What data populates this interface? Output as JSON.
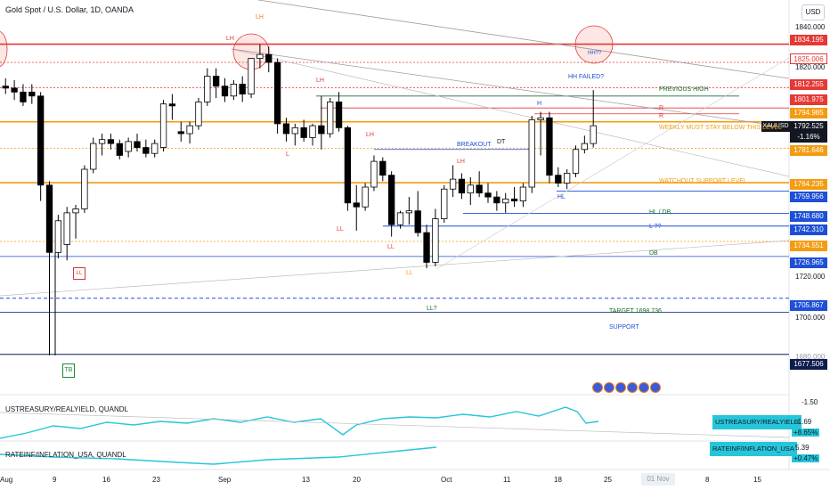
{
  "header": {
    "title": "Gold Spot / U.S. Dollar, 1D, OANDA",
    "currency_button": "USD"
  },
  "price_axis": {
    "ticks": [
      "1840.000",
      "1820.000",
      "1720.000",
      "1700.000",
      "1680.000",
      "-1.50"
    ],
    "badges": [
      {
        "id": "b1834",
        "text": "1834.195",
        "color": "#e53935"
      },
      {
        "id": "b1825",
        "text": "1825.006",
        "color": "#e53935"
      },
      {
        "id": "b1812",
        "text": "1812.255",
        "color": "#e53935"
      },
      {
        "id": "b1801",
        "text": "1801.975",
        "color": "#e53935"
      },
      {
        "id": "b1794",
        "text": "1794.985",
        "color": "#f39c12"
      },
      {
        "id": "b1781",
        "text": "1781.646",
        "color": "#f39c12"
      },
      {
        "id": "b1764",
        "text": "1764.235",
        "color": "#f39c12"
      },
      {
        "id": "b1759",
        "text": "1759.956",
        "color": "#1e4fd6"
      },
      {
        "id": "b1748",
        "text": "1748.680",
        "color": "#1e4fd6"
      },
      {
        "id": "b1742",
        "text": "1742.310",
        "color": "#1e4fd6"
      },
      {
        "id": "b1734",
        "text": "1734.551",
        "color": "#f39c12"
      },
      {
        "id": "b1726",
        "text": "1726.965",
        "color": "#1e4fd6"
      },
      {
        "id": "b1705",
        "text": "1705.867",
        "color": "#1e4fd6"
      },
      {
        "id": "b1677",
        "text": "1677.506",
        "color": "#0d1b4d"
      }
    ],
    "symbol_tag": "XAUUSD",
    "last_price": "1792.525",
    "last_change": "-1.16%"
  },
  "annotations": {
    "lh_top": "LH",
    "lh_mid": "LH",
    "lh_sep": "LH",
    "lh_oct": "LH",
    "lh_circle": "LH",
    "hh_circle": "HH??",
    "hh_failed": "HH FAILED?",
    "previous_high": "PREVIOUS HIGH",
    "weekly_close": "WEEKLY MUST STAY BELOW THIS LEVEL",
    "watchout": "WATCHOUT SUPPORT LEVEL",
    "breakout": "BREAKOUT",
    "dt": "DT",
    "h": "H",
    "hl": "HL",
    "hl_db": "HL / DB",
    "l_q": "L ??",
    "db": "DB",
    "ll_q": "LL?",
    "target": "TARGET 1698.736",
    "support": "SUPPORT",
    "l_label": "L",
    "ll1": "LL",
    "ll2": "LL",
    "ll3": "LL",
    "ll_box": "LL",
    "tb": "TB",
    "r1": "R",
    "r2": "R"
  },
  "indicators": {
    "treasury": {
      "title": "USTREASURY/REALYIELD, QUANDL",
      "name": "USTREASURY/REALYIELD",
      "value": "-1.69",
      "change": "+8.65%"
    },
    "inflation": {
      "title": "RATEINF/INFLATION_USA, QUANDL",
      "name": "RATEINF/INFLATION_USA",
      "value": "5.39",
      "change": "+0.47%"
    }
  },
  "time_axis": {
    "labels": [
      "Aug",
      "9",
      "16",
      "23",
      "Sep",
      "13",
      "20",
      "Oct",
      "11",
      "18",
      "25",
      "8",
      "15"
    ],
    "now_label": "01 Nov"
  },
  "colors": {
    "bull": "#ffffff",
    "bear": "#000000",
    "resistance": "#e53935",
    "orange": "#f39c12",
    "blue": "#1e4fd6",
    "green": "#1a6b2e",
    "teal": "#26c6da"
  },
  "chart_data": {
    "type": "candlestick",
    "candles": [
      {
        "o": 1813,
        "h": 1817,
        "l": 1809,
        "c": 1812
      },
      {
        "o": 1812,
        "h": 1816,
        "l": 1806,
        "c": 1810
      },
      {
        "o": 1810,
        "h": 1814,
        "l": 1803,
        "c": 1805
      },
      {
        "o": 1810,
        "h": 1814,
        "l": 1804,
        "c": 1808
      },
      {
        "o": 1808,
        "h": 1810,
        "l": 1755,
        "c": 1763
      },
      {
        "o": 1763,
        "h": 1765,
        "l": 1677,
        "c": 1729
      },
      {
        "o": 1729,
        "h": 1748,
        "l": 1726,
        "c": 1745
      },
      {
        "o": 1733,
        "h": 1752,
        "l": 1725,
        "c": 1749
      },
      {
        "o": 1749,
        "h": 1753,
        "l": 1736,
        "c": 1751
      },
      {
        "o": 1751,
        "h": 1773,
        "l": 1749,
        "c": 1771
      },
      {
        "o": 1771,
        "h": 1787,
        "l": 1769,
        "c": 1784
      },
      {
        "o": 1784,
        "h": 1789,
        "l": 1778,
        "c": 1786
      },
      {
        "o": 1786,
        "h": 1789,
        "l": 1781,
        "c": 1784
      },
      {
        "o": 1784,
        "h": 1786,
        "l": 1776,
        "c": 1778
      },
      {
        "o": 1780,
        "h": 1787,
        "l": 1777,
        "c": 1785
      },
      {
        "o": 1785,
        "h": 1789,
        "l": 1780,
        "c": 1782
      },
      {
        "o": 1782,
        "h": 1786,
        "l": 1777,
        "c": 1779
      },
      {
        "o": 1779,
        "h": 1786,
        "l": 1777,
        "c": 1784
      },
      {
        "o": 1782,
        "h": 1806,
        "l": 1780,
        "c": 1804
      },
      {
        "o": 1804,
        "h": 1809,
        "l": 1796,
        "c": 1803
      },
      {
        "o": 1790,
        "h": 1795,
        "l": 1785,
        "c": 1789
      },
      {
        "o": 1789,
        "h": 1795,
        "l": 1784,
        "c": 1793
      },
      {
        "o": 1793,
        "h": 1807,
        "l": 1791,
        "c": 1805
      },
      {
        "o": 1805,
        "h": 1822,
        "l": 1803,
        "c": 1818
      },
      {
        "o": 1818,
        "h": 1822,
        "l": 1807,
        "c": 1813
      },
      {
        "o": 1813,
        "h": 1817,
        "l": 1805,
        "c": 1808
      },
      {
        "o": 1808,
        "h": 1816,
        "l": 1806,
        "c": 1814
      },
      {
        "o": 1814,
        "h": 1818,
        "l": 1805,
        "c": 1809
      },
      {
        "o": 1809,
        "h": 1827,
        "l": 1807,
        "c": 1827
      },
      {
        "o": 1827,
        "h": 1834,
        "l": 1822,
        "c": 1829
      },
      {
        "o": 1829,
        "h": 1833,
        "l": 1820,
        "c": 1825
      },
      {
        "o": 1825,
        "h": 1827,
        "l": 1789,
        "c": 1794
      },
      {
        "o": 1794,
        "h": 1797,
        "l": 1785,
        "c": 1789
      },
      {
        "o": 1789,
        "h": 1794,
        "l": 1783,
        "c": 1792
      },
      {
        "o": 1792,
        "h": 1796,
        "l": 1785,
        "c": 1787
      },
      {
        "o": 1787,
        "h": 1794,
        "l": 1783,
        "c": 1793
      },
      {
        "o": 1793,
        "h": 1808,
        "l": 1781,
        "c": 1789
      },
      {
        "o": 1789,
        "h": 1807,
        "l": 1787,
        "c": 1805
      },
      {
        "o": 1805,
        "h": 1810,
        "l": 1790,
        "c": 1792
      },
      {
        "o": 1792,
        "h": 1793,
        "l": 1750,
        "c": 1754
      },
      {
        "o": 1754,
        "h": 1763,
        "l": 1740,
        "c": 1752
      },
      {
        "o": 1752,
        "h": 1764,
        "l": 1750,
        "c": 1762
      },
      {
        "o": 1762,
        "h": 1778,
        "l": 1760,
        "c": 1775
      },
      {
        "o": 1775,
        "h": 1777,
        "l": 1765,
        "c": 1768
      },
      {
        "o": 1768,
        "h": 1770,
        "l": 1737,
        "c": 1743
      },
      {
        "o": 1743,
        "h": 1750,
        "l": 1741,
        "c": 1749
      },
      {
        "o": 1749,
        "h": 1757,
        "l": 1743,
        "c": 1750
      },
      {
        "o": 1750,
        "h": 1760,
        "l": 1737,
        "c": 1739
      },
      {
        "o": 1739,
        "h": 1743,
        "l": 1721,
        "c": 1724
      },
      {
        "o": 1724,
        "h": 1751,
        "l": 1722,
        "c": 1746
      },
      {
        "o": 1746,
        "h": 1763,
        "l": 1744,
        "c": 1761
      },
      {
        "o": 1761,
        "h": 1773,
        "l": 1757,
        "c": 1766
      },
      {
        "o": 1766,
        "h": 1769,
        "l": 1756,
        "c": 1759
      },
      {
        "o": 1759,
        "h": 1767,
        "l": 1753,
        "c": 1763
      },
      {
        "o": 1763,
        "h": 1770,
        "l": 1757,
        "c": 1759
      },
      {
        "o": 1759,
        "h": 1764,
        "l": 1754,
        "c": 1757
      },
      {
        "o": 1757,
        "h": 1760,
        "l": 1750,
        "c": 1754
      },
      {
        "o": 1754,
        "h": 1759,
        "l": 1749,
        "c": 1756
      },
      {
        "o": 1756,
        "h": 1762,
        "l": 1752,
        "c": 1755
      },
      {
        "o": 1755,
        "h": 1764,
        "l": 1752,
        "c": 1762
      },
      {
        "o": 1762,
        "h": 1798,
        "l": 1759,
        "c": 1796
      },
      {
        "o": 1796,
        "h": 1800,
        "l": 1778,
        "c": 1797
      },
      {
        "o": 1797,
        "h": 1800,
        "l": 1764,
        "c": 1768
      },
      {
        "o": 1768,
        "h": 1772,
        "l": 1762,
        "c": 1764
      },
      {
        "o": 1764,
        "h": 1771,
        "l": 1761,
        "c": 1769
      },
      {
        "o": 1769,
        "h": 1783,
        "l": 1767,
        "c": 1781
      },
      {
        "o": 1781,
        "h": 1788,
        "l": 1779,
        "c": 1784
      },
      {
        "o": 1784,
        "h": 1811,
        "l": 1782,
        "c": 1793
      }
    ],
    "xlabels": [
      "Aug",
      "9",
      "16",
      "23",
      "Sep",
      "13",
      "20",
      "Oct",
      "11",
      "18",
      "25",
      "8",
      "15"
    ],
    "ylim": [
      1672,
      1843
    ]
  }
}
